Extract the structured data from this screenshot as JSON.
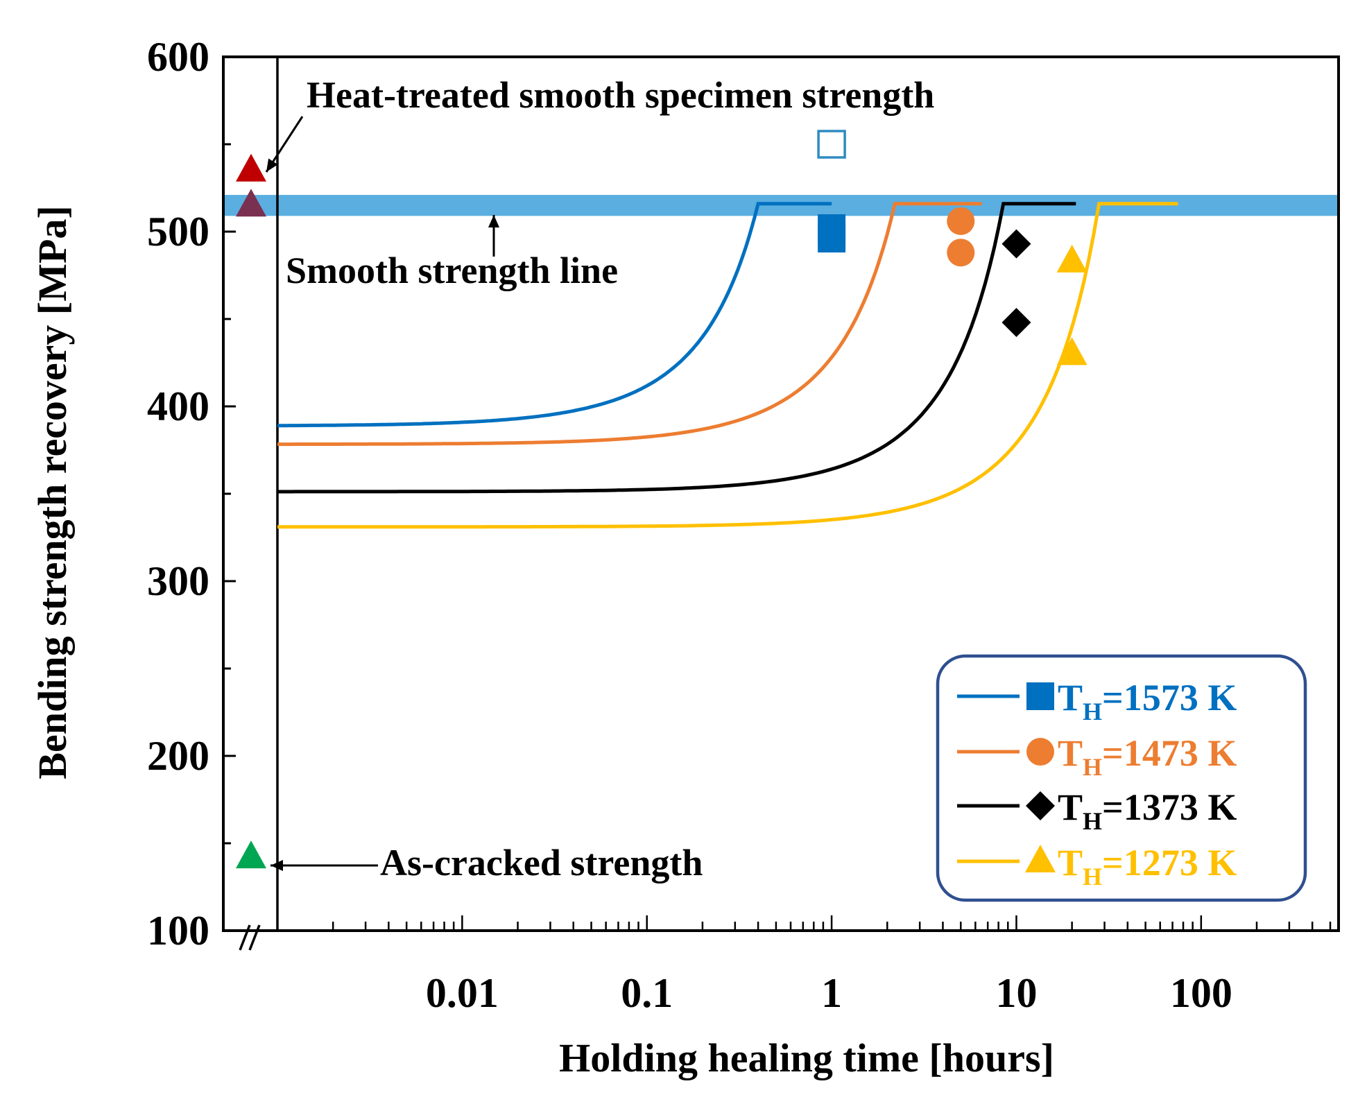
{
  "chart_data": {
    "type": "line",
    "xlabel": "Holding healing time [hours]",
    "ylabel": "Bending strength recovery [MPa]",
    "x_scale": "log",
    "xlim": [
      0.001,
      500
    ],
    "ylim": [
      100,
      600
    ],
    "x_ticks": [
      {
        "value": 0.01,
        "label": "0.01"
      },
      {
        "value": 0.1,
        "label": "0.1"
      },
      {
        "value": 1,
        "label": "1"
      },
      {
        "value": 10,
        "label": "10"
      },
      {
        "value": 100,
        "label": "100"
      }
    ],
    "y_ticks": [
      100,
      200,
      300,
      400,
      500,
      600
    ],
    "grid": false,
    "legend_position": "bottom-right",
    "smooth_strength_line": {
      "y": 515,
      "band": [
        509,
        521
      ],
      "color": "#5aaee0"
    },
    "series": [
      {
        "name_base": "T",
        "name_sub": "H",
        "name_rest": "=1573 K",
        "color": "#0070c0",
        "marker": "square",
        "curve": {
          "base": 285,
          "tau": 0.5,
          "x_end": 0.4,
          "plateau_end": 1.0,
          "cap": 516
        },
        "points": [
          {
            "x": 1,
            "y": 502
          },
          {
            "x": 1,
            "y": 496
          }
        ]
      },
      {
        "name_base": "T",
        "name_sub": "H",
        "name_rest": "=1473 K",
        "color": "#ed7d31",
        "marker": "circle",
        "curve": {
          "base": 260,
          "tau": 2.85,
          "x_end": 2.2,
          "plateau_end": 6.5,
          "cap": 516
        },
        "points": [
          {
            "x": 5,
            "y": 506
          },
          {
            "x": 5,
            "y": 488
          }
        ]
      },
      {
        "name_base": "T",
        "name_sub": "H",
        "name_rest": "=1373 K",
        "color": "#000000",
        "marker": "diamond",
        "curve": {
          "base": 230,
          "tau": 9.9,
          "x_end": 8.5,
          "plateau_end": 21,
          "cap": 516
        },
        "points": [
          {
            "x": 10,
            "y": 493
          },
          {
            "x": 10,
            "y": 448
          }
        ]
      },
      {
        "name_base": "T",
        "name_sub": "H",
        "name_rest": "=1273 K",
        "color": "#ffc000",
        "marker": "triangle",
        "curve": {
          "base": 205,
          "tau": 31,
          "x_end": 28,
          "plateau_end": 75,
          "cap": 516
        },
        "points": [
          {
            "x": 20,
            "y": 483
          },
          {
            "x": 20,
            "y": 430
          }
        ]
      }
    ],
    "extra_markers": [
      {
        "x": 1,
        "y": 550,
        "marker": "square-open",
        "color": "#2e8bc0"
      }
    ],
    "reference_markers": [
      {
        "y": 535,
        "marker": "triangle",
        "color": "#c00000"
      },
      {
        "y": 515,
        "marker": "triangle",
        "color": "#7a3050"
      },
      {
        "y": 142,
        "marker": "triangle",
        "color": "#00a651"
      }
    ],
    "annotations": {
      "heat_treated": "Heat-treated smooth specimen strength",
      "smooth_line": "Smooth strength line",
      "as_cracked": "As-cracked strength"
    }
  }
}
